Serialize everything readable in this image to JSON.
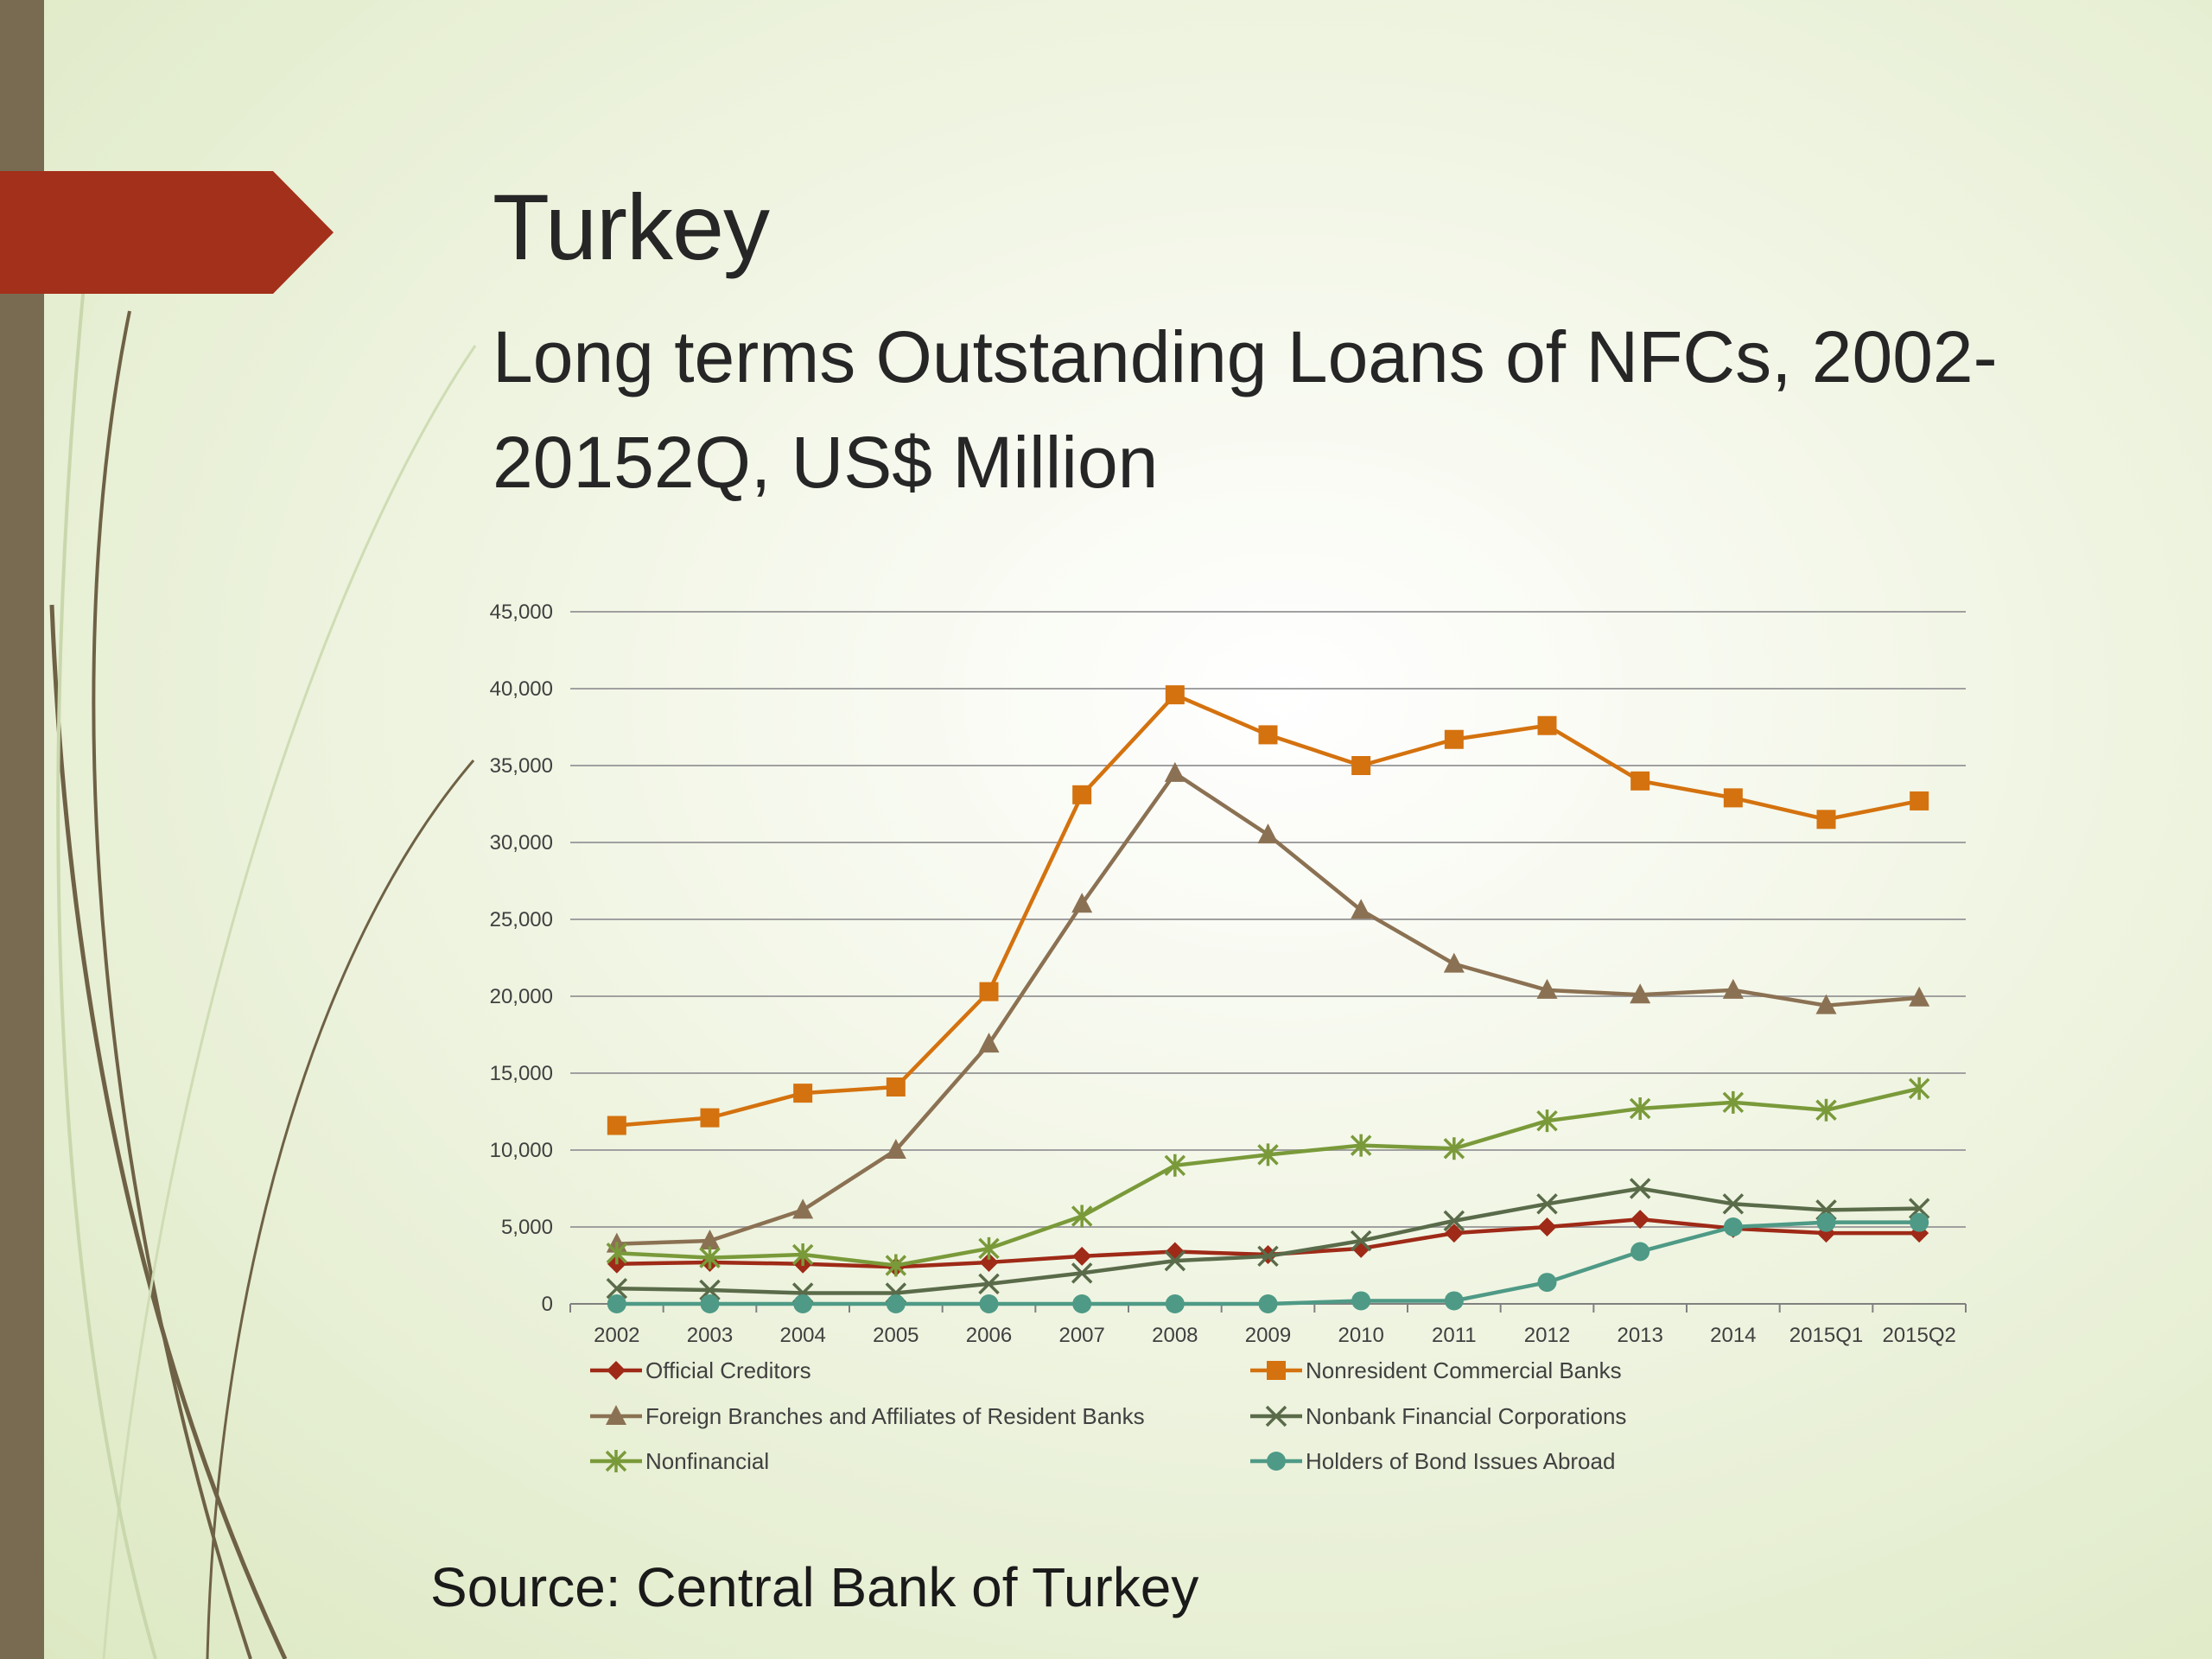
{
  "slide": {
    "title": "Turkey",
    "subtitle": "Long terms Outstanding Loans of NFCs, 2002-20152Q, US$ Million",
    "source": "Source: Central Bank of Turkey"
  },
  "theme": {
    "left_bar_color": "#786b52",
    "accent_arrow_color": "#a3301a",
    "gridline_color": "#a0a0a0"
  },
  "chart_data": {
    "type": "line",
    "title": "",
    "xlabel": "",
    "ylabel": "",
    "ylim": [
      0,
      45000
    ],
    "yticks": [
      0,
      5000,
      10000,
      15000,
      20000,
      25000,
      30000,
      35000,
      40000,
      45000
    ],
    "ytick_labels": [
      "0",
      "5,000",
      "10,000",
      "15,000",
      "20,000",
      "25,000",
      "30,000",
      "35,000",
      "40,000",
      "45,000"
    ],
    "grid": "horizontal",
    "legend_position": "bottom",
    "categories": [
      "2002",
      "2003",
      "2004",
      "2005",
      "2006",
      "2007",
      "2008",
      "2009",
      "2010",
      "2011",
      "2012",
      "2013",
      "2014",
      "2015Q1",
      "2015Q2"
    ],
    "series": [
      {
        "name": "Official Creditors",
        "color": "#9e2a17",
        "marker": "diamond",
        "values": [
          2600,
          2700,
          2600,
          2400,
          2700,
          3100,
          3400,
          3200,
          3600,
          4600,
          5000,
          5500,
          4900,
          4600,
          4600
        ]
      },
      {
        "name": "Nonresident Commercial Banks",
        "color": "#d4720f",
        "marker": "square",
        "values": [
          11600,
          12100,
          13700,
          14100,
          20300,
          33100,
          39600,
          37000,
          35000,
          36700,
          37600,
          34000,
          32900,
          31500,
          32700
        ]
      },
      {
        "name": "Foreign Branches and Affiliates of Resident Banks",
        "color": "#8b7153",
        "marker": "triangle",
        "values": [
          3900,
          4100,
          6100,
          10000,
          16900,
          26000,
          34500,
          30500,
          25600,
          22100,
          20400,
          20100,
          20400,
          19400,
          19900
        ]
      },
      {
        "name": "Nonbank Financial Corporations",
        "color": "#5a6b4a",
        "marker": "x",
        "values": [
          1000,
          900,
          700,
          700,
          1300,
          2000,
          2800,
          3100,
          4100,
          5400,
          6500,
          7500,
          6500,
          6100,
          6200
        ]
      },
      {
        "name": "Nonfinancial",
        "color": "#7a9a3a",
        "marker": "star",
        "values": [
          3300,
          3000,
          3200,
          2500,
          3600,
          5700,
          9000,
          9700,
          10300,
          10100,
          11900,
          12700,
          13100,
          12600,
          14000
        ]
      },
      {
        "name": "Holders of Bond Issues Abroad",
        "color": "#4e9a86",
        "marker": "circle",
        "values": [
          0,
          0,
          0,
          0,
          0,
          0,
          0,
          0,
          200,
          200,
          1400,
          3400,
          5000,
          5300,
          5300
        ]
      }
    ]
  }
}
